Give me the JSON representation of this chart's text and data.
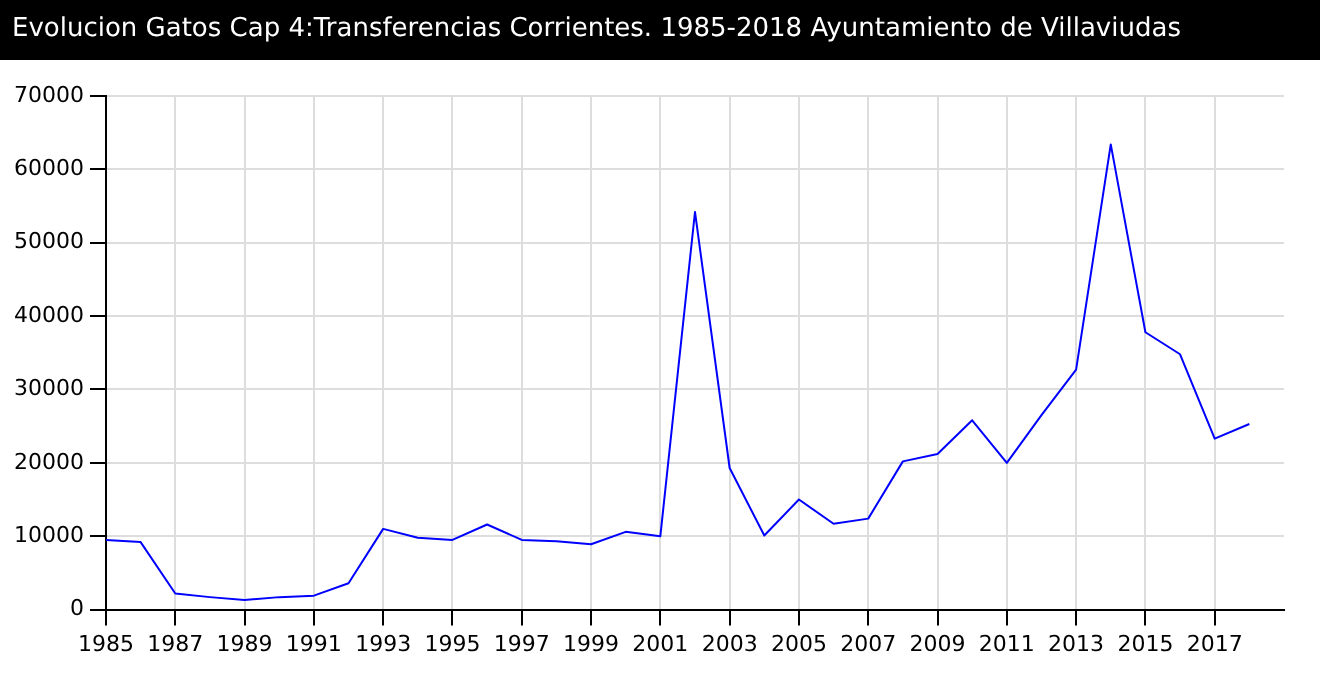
{
  "chart_data": {
    "type": "line",
    "title": "Evolucion Gatos Cap 4:Transferencias Corrientes. 1985-2018 Ayuntamiento de Villaviudas",
    "x": [
      1985,
      1986,
      1987,
      1988,
      1989,
      1990,
      1991,
      1992,
      1993,
      1994,
      1995,
      1996,
      1997,
      1998,
      1999,
      2000,
      2001,
      2002,
      2003,
      2004,
      2005,
      2006,
      2007,
      2008,
      2009,
      2010,
      2011,
      2012,
      2013,
      2014,
      2015,
      2016,
      2017,
      2018
    ],
    "series": [
      {
        "color": "#0000ff",
        "values": [
          9500,
          9200,
          2200,
          1700,
          1300,
          1700,
          1900,
          3600,
          11000,
          9800,
          9500,
          11600,
          9500,
          9300,
          8900,
          10600,
          10000,
          54200,
          19300,
          10100,
          15000,
          11700,
          12400,
          20200,
          21200,
          25800,
          20000,
          26500,
          32700,
          63400,
          37800,
          34800,
          23300,
          25300
        ]
      }
    ],
    "xlim": [
      1985,
      2019
    ],
    "xticks": [
      1985,
      1987,
      1989,
      1991,
      1993,
      1995,
      1997,
      1999,
      2001,
      2003,
      2005,
      2007,
      2009,
      2011,
      2013,
      2015,
      2017
    ],
    "ylim": [
      0,
      70000
    ],
    "yticks": [
      0,
      10000,
      20000,
      30000,
      40000,
      50000,
      60000,
      70000
    ],
    "grid": true,
    "legend": false,
    "marker": "none",
    "line_style": "solid"
  }
}
